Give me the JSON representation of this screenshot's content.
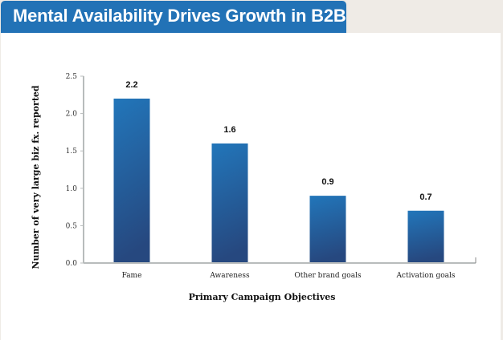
{
  "header": {
    "title": "Mental Availability Drives Growth in B2B"
  },
  "colors": {
    "title_bg": "#2272b6",
    "bar_top": "#2276ba",
    "bar_bottom": "#26487f",
    "axis": "#b8bcbc",
    "background": "#efebe6"
  },
  "chart_data": {
    "type": "bar",
    "title": "Mental Availability Drives Growth in B2B",
    "categories": [
      "Fame",
      "Awareness",
      "Other brand goals",
      "Activation goals"
    ],
    "values": [
      2.2,
      1.6,
      0.9,
      0.7
    ],
    "data_labels": [
      "2.2",
      "1.6",
      "0.9",
      "0.7"
    ],
    "xlabel": "Primary Campaign Objectives",
    "ylabel": "Number of very large biz fx. reported",
    "ylim": [
      0,
      2.5
    ],
    "yticks": [
      0.0,
      0.5,
      1.0,
      1.5,
      2.0,
      2.5
    ],
    "ytick_labels": [
      "0.0",
      "0.5",
      "1.0",
      "1.5",
      "2.0",
      "2.5"
    ],
    "grid": false,
    "legend": "none"
  }
}
